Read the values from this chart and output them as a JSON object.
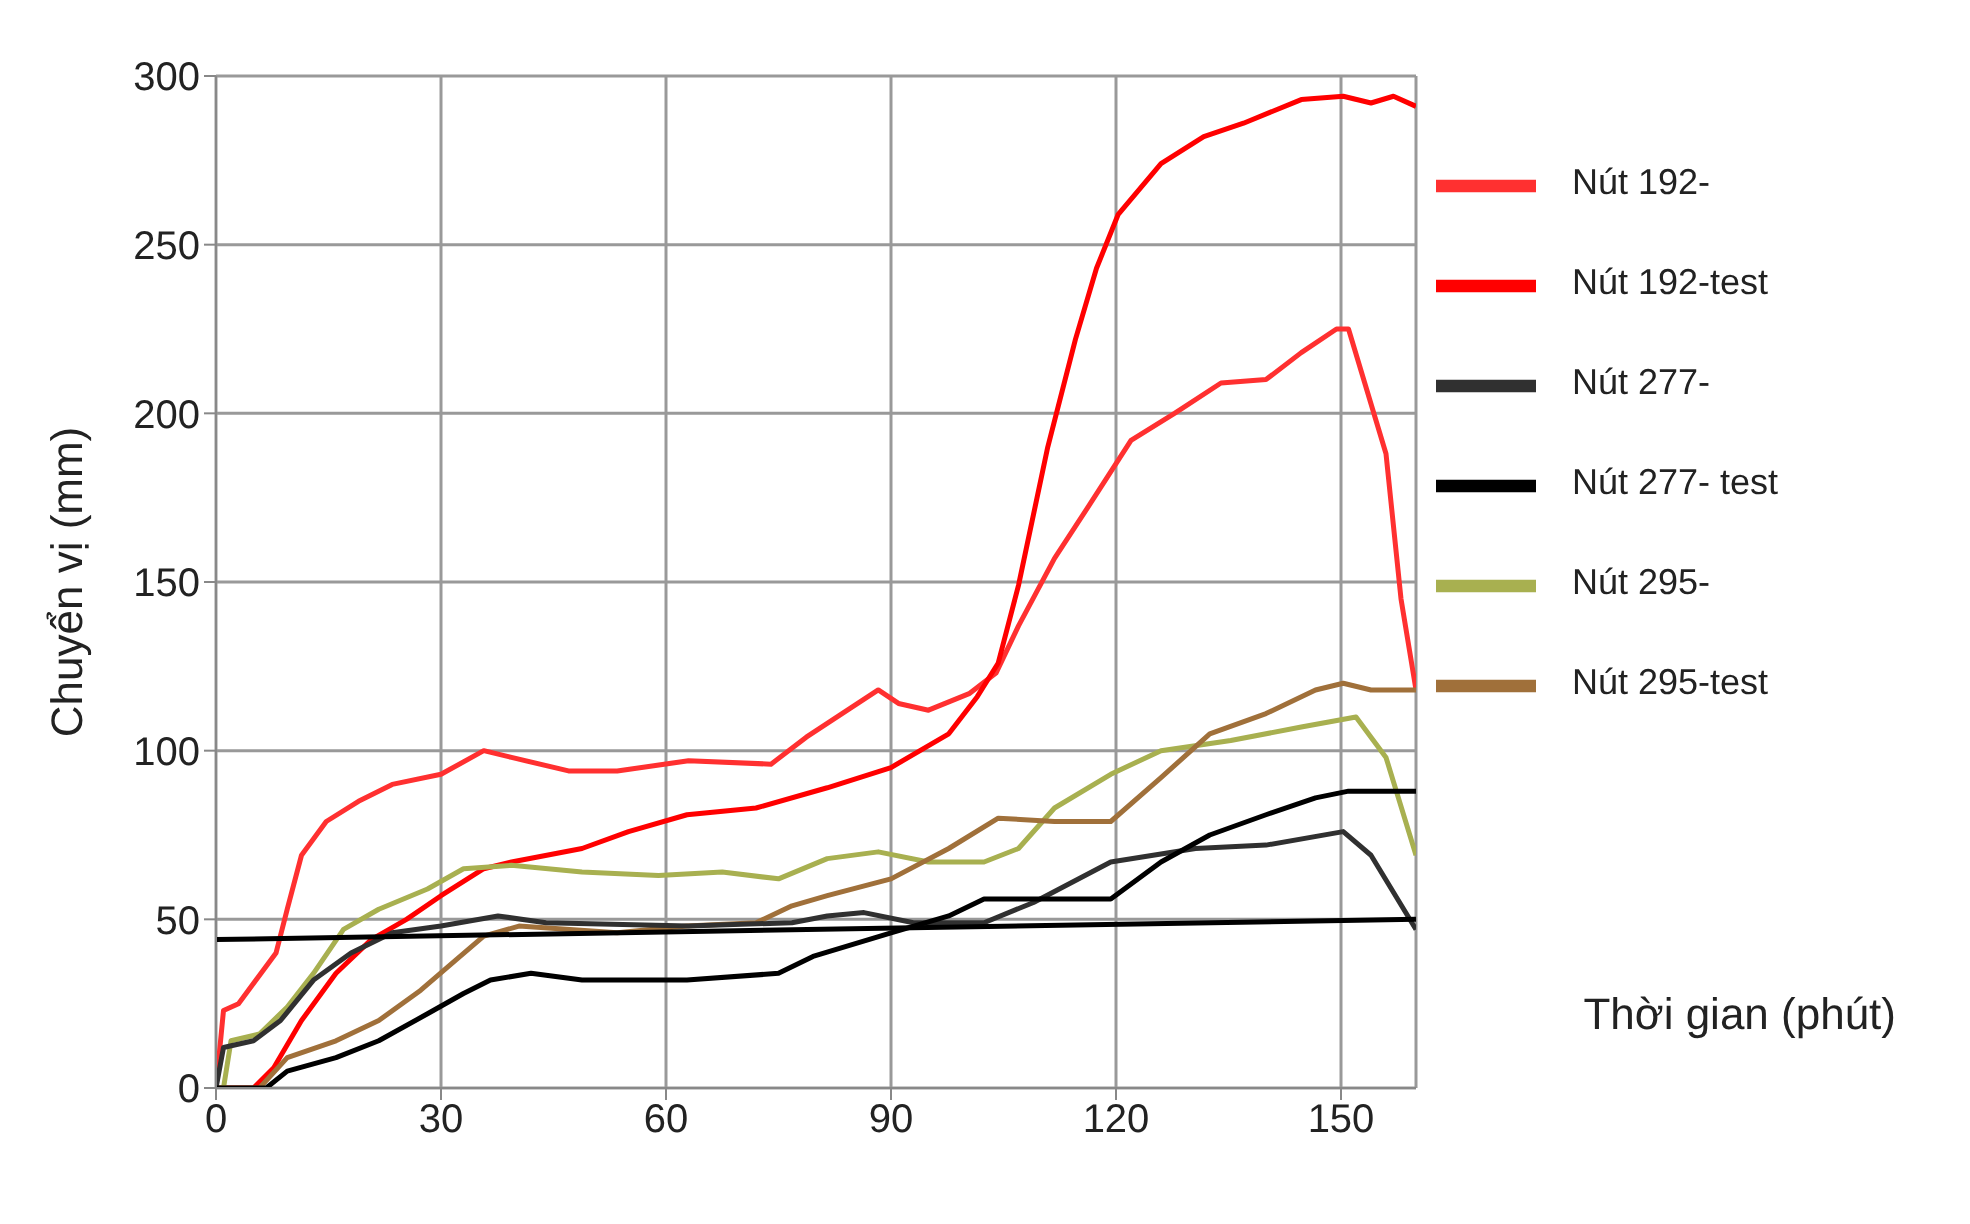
{
  "chart_data": {
    "type": "line",
    "xlabel": "Thời gian (phút)",
    "ylabel": "Chuyển vị (mm)",
    "xlim": [
      0,
      160
    ],
    "xticks": [
      0,
      30,
      60,
      90,
      120,
      150
    ],
    "ylim": [
      0,
      300
    ],
    "yticks": [
      0,
      50,
      100,
      150,
      200,
      250,
      300
    ],
    "grid": true,
    "legend": "right",
    "marker": "none",
    "line_style": "solid",
    "series": [
      {
        "name": "Nút 192-",
        "color": "#ff3030",
        "x": [
          0,
          1,
          3,
          8,
          9.5,
          11.4,
          14.7,
          19,
          23.5,
          30,
          35.7,
          39.4,
          47,
          53.5,
          63,
          74,
          78.7,
          88.3,
          91,
          95,
          100.5,
          104,
          107,
          111.8,
          116.5,
          122,
          127.8,
          134,
          140,
          144.7,
          149.4,
          151,
          156,
          158,
          160
        ],
        "values": [
          0,
          23,
          25,
          40,
          53,
          69,
          79,
          85,
          90,
          93,
          100,
          98,
          94,
          94,
          97,
          96,
          104,
          118,
          114,
          112,
          117,
          123,
          137,
          157,
          173,
          192,
          200,
          209,
          210,
          218,
          225,
          225,
          188,
          145,
          118
        ]
      },
      {
        "name": "Nút 192-test",
        "color": "#ff0000",
        "x": [
          0,
          5,
          7.7,
          11.4,
          16,
          20.7,
          25.4,
          30,
          35.7,
          39.4,
          48.8,
          55,
          62.8,
          72,
          81.5,
          90,
          97.7,
          101.5,
          104.3,
          107,
          110.9,
          114.6,
          117.4,
          120.3,
          126,
          131.7,
          137,
          144.7,
          150.3,
          154,
          157,
          160
        ],
        "values": [
          0,
          0,
          6,
          20,
          34,
          44,
          50,
          57,
          65,
          67,
          71,
          76,
          81,
          83,
          89,
          95,
          105,
          116,
          126,
          149,
          190,
          222,
          243,
          259,
          274,
          282,
          286,
          293,
          294,
          292,
          294,
          291
        ]
      },
      {
        "name": "Nút 295-",
        "color": "#a8b050",
        "x": [
          0,
          1,
          2,
          5.8,
          9.5,
          13,
          17,
          21.7,
          28.2,
          33,
          39.4,
          48.8,
          59,
          67.5,
          75,
          81.5,
          88.3,
          95,
          102.4,
          107,
          111.8,
          119.3,
          126,
          135.3,
          144.7,
          152,
          156,
          160
        ],
        "values": [
          0,
          0,
          14,
          16,
          24,
          34,
          47,
          53,
          59,
          65,
          66,
          64,
          63,
          64,
          62,
          68,
          70,
          67,
          67,
          71,
          83,
          93,
          100,
          103,
          107,
          110,
          98,
          69
        ]
      },
      {
        "name": "Nút 295-test",
        "color": "#a0703a",
        "x": [
          0,
          5.8,
          9.5,
          16,
          21.7,
          27.3,
          32,
          35.7,
          40.4,
          53.5,
          62.8,
          72,
          76.8,
          81.5,
          90,
          97.7,
          104.3,
          111.8,
          119.3,
          126,
          132.5,
          140,
          146.6,
          150.3,
          154,
          160
        ],
        "values": [
          0,
          0,
          9,
          14,
          20,
          29,
          38,
          45,
          48,
          46,
          48,
          49,
          54,
          57,
          62,
          71,
          80,
          79,
          79,
          92,
          105,
          111,
          118,
          120,
          118,
          118
        ]
      },
      {
        "name": "Nút 277-",
        "color": "#303030",
        "x": [
          0,
          1,
          5,
          8.6,
          13,
          18,
          23.5,
          30,
          37.6,
          44,
          63,
          76.8,
          81.5,
          86.4,
          93,
          102.4,
          109,
          119.3,
          130.6,
          140,
          150.3,
          154,
          160
        ],
        "values": [
          0,
          12,
          14,
          20,
          32,
          40,
          46,
          48,
          51,
          49,
          48,
          49,
          51,
          52,
          49,
          49,
          55,
          67,
          71,
          72,
          76,
          69,
          47
        ]
      },
      {
        "name": "Nút 277- test",
        "color": "#000000",
        "x": [
          0,
          6.7,
          9.5,
          16,
          21.7,
          28.2,
          33,
          36.6,
          42,
          48.8,
          62.8,
          75,
          79.6,
          90,
          97.7,
          102.4,
          111.8,
          119.3,
          126,
          132.5,
          140,
          146.6,
          151,
          160
        ],
        "values": [
          0,
          0,
          5,
          9,
          14,
          22,
          28,
          32,
          34,
          32,
          32,
          34,
          39,
          46,
          51,
          56,
          56,
          56,
          67,
          75,
          81,
          86,
          88,
          88
        ]
      },
      {
        "color": "#000000",
        "x": [
          0,
          160
        ],
        "values": [
          44,
          50
        ]
      }
    ]
  }
}
